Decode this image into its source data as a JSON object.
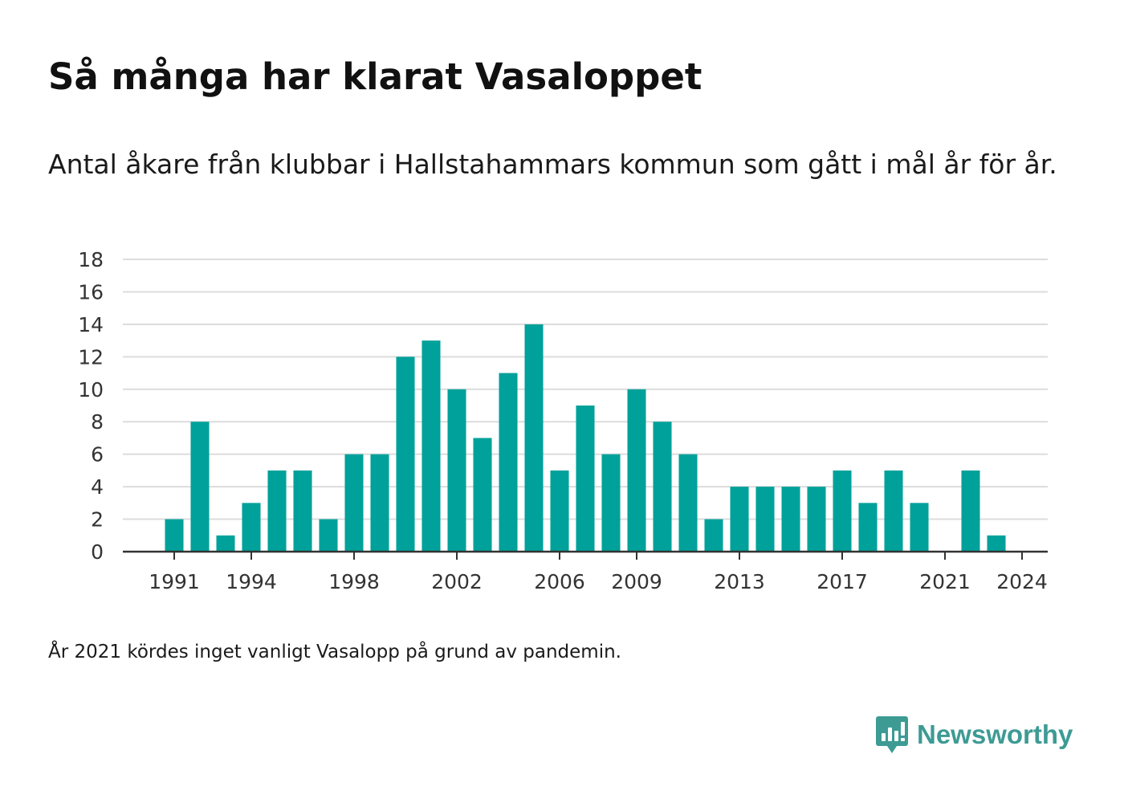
{
  "title": "Så många har klarat Vasaloppet",
  "subtitle": "Antal åkare från klubbar i Hallstahammars kommun som gått i mål år för år.",
  "note": "År 2021 kördes inget vanligt Vasalopp på grund av pandemin.",
  "logo": {
    "name": "Newsworthy",
    "icon": "newsworthy-logo-icon",
    "color": "#3d9b94"
  },
  "chart_data": {
    "type": "bar",
    "title": "",
    "xlabel": "",
    "ylabel": "",
    "bar_color": "#00a19a",
    "grid": true,
    "ylim": [
      0,
      18
    ],
    "yticks": [
      0,
      2,
      4,
      6,
      8,
      10,
      12,
      14,
      16,
      18
    ],
    "xlim": [
      1989,
      2025
    ],
    "xticks": [
      1991,
      1994,
      1998,
      2002,
      2006,
      2009,
      2013,
      2017,
      2021,
      2024
    ],
    "categories": [
      1991,
      1992,
      1993,
      1994,
      1995,
      1996,
      1997,
      1998,
      1999,
      2000,
      2001,
      2002,
      2003,
      2004,
      2005,
      2006,
      2007,
      2008,
      2009,
      2010,
      2011,
      2012,
      2013,
      2014,
      2015,
      2016,
      2017,
      2018,
      2019,
      2020,
      2021,
      2022,
      2023,
      2024
    ],
    "values": [
      2,
      8,
      1,
      3,
      5,
      5,
      2,
      6,
      6,
      12,
      13,
      10,
      7,
      11,
      14,
      5,
      9,
      6,
      10,
      8,
      6,
      2,
      4,
      4,
      4,
      4,
      5,
      3,
      5,
      3,
      0,
      5,
      1,
      0
    ]
  }
}
